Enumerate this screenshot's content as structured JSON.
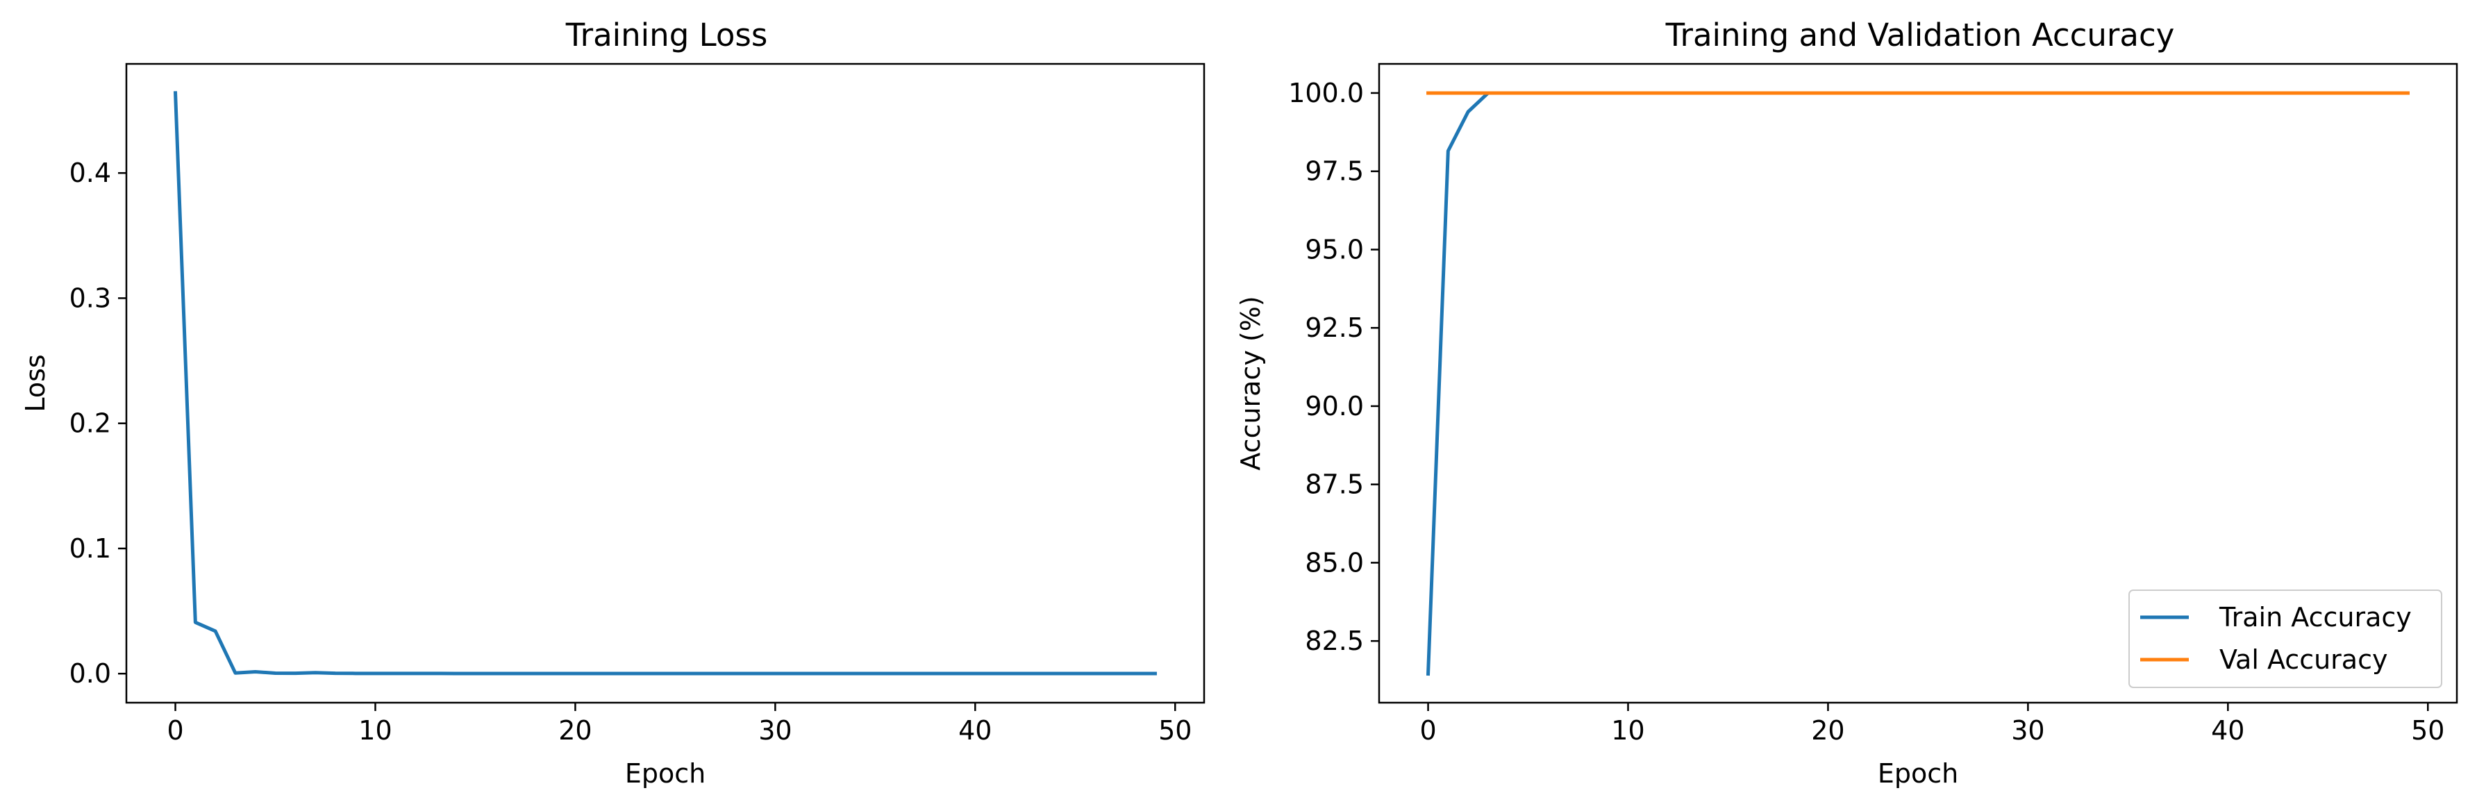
{
  "chart_data": [
    {
      "type": "line",
      "title": "Training Loss",
      "xlabel": "Epoch",
      "ylabel": "Loss",
      "xlim": [
        -2.45,
        51.45
      ],
      "ylim": [
        -0.0232,
        0.4872
      ],
      "xticks": [
        0,
        10,
        20,
        30,
        40,
        50
      ],
      "yticks": [
        0.0,
        0.1,
        0.2,
        0.3,
        0.4
      ],
      "ytick_labels": [
        "0.0",
        "0.1",
        "0.2",
        "0.3",
        "0.4"
      ],
      "xtick_labels": [
        "0",
        "10",
        "20",
        "30",
        "40",
        "50"
      ],
      "legend": null,
      "grid": false,
      "series": [
        {
          "color": "#1f77b4",
          "x": [
            0,
            1,
            2,
            3,
            4,
            5,
            6,
            7,
            8,
            9,
            10,
            11,
            12,
            13,
            14,
            15,
            16,
            17,
            18,
            19,
            20,
            21,
            22,
            23,
            24,
            25,
            26,
            27,
            28,
            29,
            30,
            31,
            32,
            33,
            34,
            35,
            36,
            37,
            38,
            39,
            40,
            41,
            42,
            43,
            44,
            45,
            46,
            47,
            48,
            49
          ],
          "y": [
            0.464,
            0.041,
            0.034,
            0.0005,
            0.0015,
            0.0004,
            0.0003,
            0.0008,
            0.0003,
            0.0002,
            0.0002,
            0.0002,
            0.0002,
            0.0002,
            0.0001,
            0.0001,
            0.0001,
            0.0001,
            0.0001,
            0.0001,
            0.0001,
            0.0001,
            0.0001,
            0.0001,
            0.0001,
            0.0001,
            0.0001,
            0.0001,
            0.0001,
            0.0001,
            0.0001,
            0.0001,
            0.0001,
            0.0001,
            0.0001,
            0.0001,
            0.0001,
            0.0001,
            0.0001,
            0.0001,
            0.0001,
            0.0001,
            0.0001,
            0.0001,
            0.0001,
            0.0001,
            0.0001,
            0.0001,
            0.0001,
            0.0001
          ]
        }
      ]
    },
    {
      "type": "line",
      "title": "Training and Validation Accuracy",
      "xlabel": "Epoch",
      "ylabel": "Accuracy (%)",
      "xlim": [
        -2.45,
        51.45
      ],
      "ylim": [
        80.53,
        100.93
      ],
      "xticks": [
        0,
        10,
        20,
        30,
        40,
        50
      ],
      "yticks": [
        82.5,
        85.0,
        87.5,
        90.0,
        92.5,
        95.0,
        97.5,
        100.0
      ],
      "ytick_labels": [
        "82.5",
        "85.0",
        "87.5",
        "90.0",
        "92.5",
        "95.0",
        "97.5",
        "100.0"
      ],
      "xtick_labels": [
        "0",
        "10",
        "20",
        "30",
        "40",
        "50"
      ],
      "legend": "lower-right",
      "grid": false,
      "series": [
        {
          "name": "Train Accuracy",
          "color": "#1f77b4",
          "x": [
            0,
            1,
            2,
            3,
            4,
            5,
            6,
            7,
            8,
            9,
            10,
            11,
            12,
            13,
            14,
            15,
            16,
            17,
            18,
            19,
            20,
            21,
            22,
            23,
            24,
            25,
            26,
            27,
            28,
            29,
            30,
            31,
            32,
            33,
            34,
            35,
            36,
            37,
            38,
            39,
            40,
            41,
            42,
            43,
            44,
            45,
            46,
            47,
            48,
            49
          ],
          "y": [
            81.45,
            98.15,
            99.4,
            100.0,
            100.0,
            100.0,
            100.0,
            100.0,
            100.0,
            100.0,
            100.0,
            100.0,
            100.0,
            100.0,
            100.0,
            100.0,
            100.0,
            100.0,
            100.0,
            100.0,
            100.0,
            100.0,
            100.0,
            100.0,
            100.0,
            100.0,
            100.0,
            100.0,
            100.0,
            100.0,
            100.0,
            100.0,
            100.0,
            100.0,
            100.0,
            100.0,
            100.0,
            100.0,
            100.0,
            100.0,
            100.0,
            100.0,
            100.0,
            100.0,
            100.0,
            100.0,
            100.0,
            100.0,
            100.0,
            100.0
          ]
        },
        {
          "name": "Val Accuracy",
          "color": "#ff7f0e",
          "x": [
            0,
            1,
            2,
            3,
            4,
            5,
            6,
            7,
            8,
            9,
            10,
            11,
            12,
            13,
            14,
            15,
            16,
            17,
            18,
            19,
            20,
            21,
            22,
            23,
            24,
            25,
            26,
            27,
            28,
            29,
            30,
            31,
            32,
            33,
            34,
            35,
            36,
            37,
            38,
            39,
            40,
            41,
            42,
            43,
            44,
            45,
            46,
            47,
            48,
            49
          ],
          "y": [
            100.0,
            100.0,
            100.0,
            100.0,
            100.0,
            100.0,
            100.0,
            100.0,
            100.0,
            100.0,
            100.0,
            100.0,
            100.0,
            100.0,
            100.0,
            100.0,
            100.0,
            100.0,
            100.0,
            100.0,
            100.0,
            100.0,
            100.0,
            100.0,
            100.0,
            100.0,
            100.0,
            100.0,
            100.0,
            100.0,
            100.0,
            100.0,
            100.0,
            100.0,
            100.0,
            100.0,
            100.0,
            100.0,
            100.0,
            100.0,
            100.0,
            100.0,
            100.0,
            100.0,
            100.0,
            100.0,
            100.0,
            100.0,
            100.0,
            100.0
          ]
        }
      ]
    }
  ]
}
